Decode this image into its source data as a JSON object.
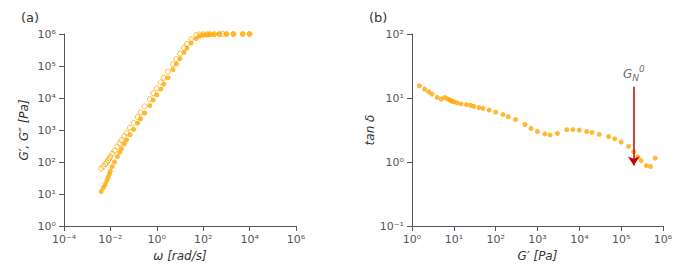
{
  "chart_data": [
    {
      "type": "scatter",
      "title": "(a)",
      "xlabel": "ω [rad/s]",
      "ylabel": "G′, G″ [Pa]",
      "log": true,
      "grid": false,
      "xlim": [
        0.0001,
        1000000
      ],
      "ylim": [
        1,
        1000000
      ],
      "xticks": [
        {
          "value": 0.0001,
          "label": "10⁻⁴"
        },
        {
          "value": 0.01,
          "label": "10⁻²"
        },
        {
          "value": 1,
          "label": "10⁰"
        },
        {
          "value": 100,
          "label": "10²"
        },
        {
          "value": 10000,
          "label": "10⁴"
        },
        {
          "value": 1000000,
          "label": "10⁶"
        }
      ],
      "yticks": [
        {
          "value": 1,
          "label": "10⁰"
        },
        {
          "value": 10,
          "label": "10¹"
        },
        {
          "value": 100,
          "label": "10²"
        },
        {
          "value": 1000,
          "label": "10³"
        },
        {
          "value": 10000,
          "label": "10⁴"
        },
        {
          "value": 100000,
          "label": "10⁵"
        },
        {
          "value": 1000000,
          "label": "10⁶"
        }
      ],
      "series": [
        {
          "color": "#FFA800",
          "marker": "filled",
          "x": [
            0.004,
            0.005,
            0.006,
            0.007,
            0.008,
            0.009,
            0.01,
            0.012,
            0.015,
            0.02,
            0.025,
            0.03,
            0.04,
            0.05,
            0.07,
            0.1,
            0.15,
            0.2,
            0.3,
            0.5,
            0.7,
            1.0,
            1.5,
            2.0,
            3.0,
            5.0,
            7.0,
            10.0,
            15.0,
            20.0,
            30.0,
            50.0,
            70.0,
            100.0,
            150.0,
            200.0,
            300.0,
            500.0,
            1000.0,
            2000.0,
            5000.0,
            10000.0
          ],
          "values": [
            12,
            16,
            20,
            26,
            33,
            42,
            52,
            72,
            100,
            148,
            200,
            260,
            370,
            490,
            710,
            1050,
            1650,
            2250,
            3400,
            5800,
            8700,
            12500,
            19000,
            27000,
            43000,
            77000,
            115000,
            170000,
            265000,
            360000,
            520000,
            720000,
            860000,
            920000,
            950000,
            960000,
            970000,
            980000,
            990000,
            995000,
            998000,
            1000000
          ]
        },
        {
          "color": "#FFA800",
          "marker": "open",
          "x": [
            0.004,
            0.005,
            0.006,
            0.007,
            0.008,
            0.009,
            0.01,
            0.012,
            0.015,
            0.02,
            0.025,
            0.03,
            0.04,
            0.05,
            0.07,
            0.1,
            0.15,
            0.2,
            0.3,
            0.5,
            0.7,
            1.0,
            1.5,
            2.0,
            3.0,
            5.0,
            7.0,
            10.0,
            15.0,
            20.0,
            30.0,
            50.0,
            70.0,
            100.0,
            150.0,
            200.0,
            300.0,
            500.0,
            700.0,
            1000.0,
            2000.0,
            5000.0,
            10000.0
          ],
          "values": [
            62,
            72,
            85,
            98,
            112,
            128,
            148,
            182,
            228,
            300,
            385,
            475,
            640,
            820,
            1180,
            1680,
            2550,
            3550,
            5500,
            9200,
            14000,
            20000,
            31000,
            43000,
            67000,
            113000,
            165000,
            245000,
            370000,
            490000,
            690000,
            930000,
            970000,
            975000,
            980000,
            985000,
            990000,
            995000,
            998000,
            1000000,
            1000000,
            1000000,
            1000000
          ]
        }
      ]
    },
    {
      "type": "scatter",
      "title": "(b)",
      "xlabel": "G′ [Pa]",
      "ylabel": "tan δ",
      "log": true,
      "grid": false,
      "xlim": [
        1,
        1000000
      ],
      "ylim": [
        0.1,
        100
      ],
      "xticks": [
        {
          "value": 1,
          "label": "10⁰"
        },
        {
          "value": 10,
          "label": "10¹"
        },
        {
          "value": 100,
          "label": "10²"
        },
        {
          "value": 1000,
          "label": "10³"
        },
        {
          "value": 10000,
          "label": "10⁴"
        },
        {
          "value": 100000,
          "label": "10⁵"
        },
        {
          "value": 1000000,
          "label": "10⁶"
        }
      ],
      "yticks": [
        {
          "value": 0.1,
          "label": "10⁻¹"
        },
        {
          "value": 1,
          "label": "10⁰"
        },
        {
          "value": 10,
          "label": "10¹"
        },
        {
          "value": 100,
          "label": "10²"
        }
      ],
      "series": [
        {
          "color": "#FFA800",
          "marker": "filled",
          "x": [
            1.5,
            2.0,
            2.5,
            3.0,
            4.0,
            5.0,
            6.0,
            7.0,
            8.0,
            9.0,
            10.0,
            12.0,
            15.0,
            20.0,
            25.0,
            30.0,
            40.0,
            50.0,
            70.0,
            100.0,
            150.0,
            200.0,
            300.0,
            500.0,
            700.0,
            1000.0,
            1500.0,
            2000.0,
            3000.0,
            5000.0,
            7000.0,
            10000.0,
            15000.0,
            20000.0,
            30000.0,
            50000.0,
            70000.0,
            100000.0,
            150000.0,
            200000.0,
            250000.0,
            300000.0,
            400000.0,
            500000.0,
            650000.0
          ],
          "values": [
            15.5,
            13.8,
            12.5,
            11.5,
            10.2,
            9.6,
            10.2,
            9.7,
            9.3,
            8.9,
            8.7,
            8.4,
            8.1,
            7.9,
            7.7,
            7.4,
            7.1,
            6.9,
            6.5,
            6.0,
            5.5,
            5.1,
            4.6,
            3.85,
            3.35,
            3.0,
            2.75,
            2.65,
            2.8,
            3.2,
            3.2,
            3.15,
            3.0,
            2.9,
            2.7,
            2.5,
            2.3,
            2.05,
            1.75,
            1.45,
            1.2,
            1.05,
            0.88,
            0.85,
            1.15
          ]
        }
      ],
      "annotations": [
        {
          "text": "G",
          "sub": "N",
          "sup": "0",
          "text_color": "#444444",
          "x": 200000,
          "y_top": 15.0,
          "y_bottom": 0.88,
          "color": "#CC0000"
        }
      ]
    }
  ]
}
